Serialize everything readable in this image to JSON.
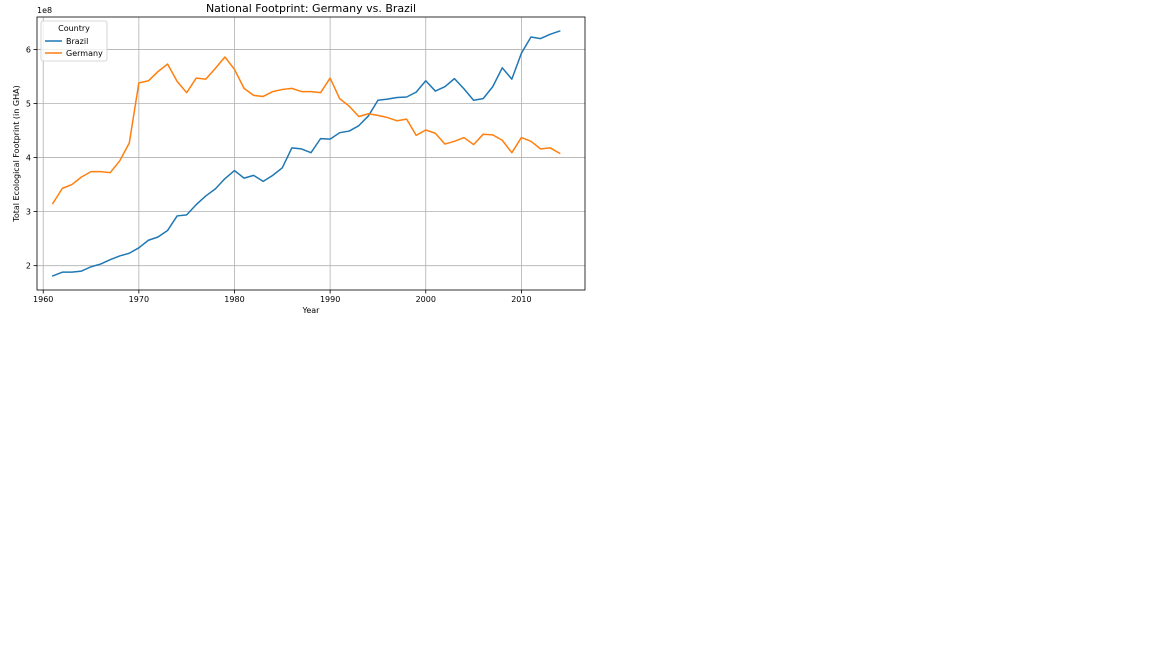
{
  "chart_data": {
    "type": "line",
    "title": "National Footprint: Germany vs. Brazil",
    "xlabel": "Year",
    "ylabel": "Total Ecological Footprint (in GHA)",
    "y_offset_text": "1e8",
    "xlim": [
      1959.35,
      2016.65
    ],
    "ylim": [
      1.55,
      6.6
    ],
    "xticks": [
      1960,
      1970,
      1980,
      1990,
      2000,
      2010
    ],
    "yticks": [
      2,
      3,
      4,
      5,
      6
    ],
    "grid": true,
    "legend": {
      "title": "Country",
      "placement": "top-left"
    },
    "x": [
      1961,
      1962,
      1963,
      1964,
      1965,
      1966,
      1967,
      1968,
      1969,
      1970,
      1971,
      1972,
      1973,
      1974,
      1975,
      1976,
      1977,
      1978,
      1979,
      1980,
      1981,
      1982,
      1983,
      1984,
      1985,
      1986,
      1987,
      1988,
      1989,
      1990,
      1991,
      1992,
      1993,
      1994,
      1995,
      1996,
      1997,
      1998,
      1999,
      2000,
      2001,
      2002,
      2003,
      2004,
      2005,
      2006,
      2007,
      2008,
      2009,
      2010,
      2011,
      2012,
      2013,
      2014
    ],
    "series": [
      {
        "name": "Brazil",
        "color": "#1f77b4",
        "values": [
          1.81,
          1.88,
          1.88,
          1.9,
          1.98,
          2.03,
          2.11,
          2.18,
          2.23,
          2.33,
          2.47,
          2.53,
          2.65,
          2.92,
          2.94,
          3.13,
          3.29,
          3.42,
          3.61,
          3.76,
          3.62,
          3.67,
          3.56,
          3.67,
          3.81,
          4.18,
          4.16,
          4.09,
          4.35,
          4.34,
          4.46,
          4.49,
          4.59,
          4.77,
          5.06,
          5.08,
          5.11,
          5.12,
          5.21,
          5.42,
          5.23,
          5.31,
          5.46,
          5.27,
          5.06,
          5.09,
          5.31,
          5.66,
          5.45,
          5.93,
          6.23,
          6.2,
          6.28,
          6.34
        ]
      },
      {
        "name": "Germany",
        "color": "#ff7f0e",
        "values": [
          3.15,
          3.43,
          3.5,
          3.64,
          3.74,
          3.74,
          3.72,
          3.94,
          4.27,
          5.38,
          5.42,
          5.59,
          5.73,
          5.41,
          5.2,
          5.47,
          5.45,
          5.65,
          5.86,
          5.63,
          5.28,
          5.15,
          5.13,
          5.22,
          5.26,
          5.28,
          5.22,
          5.22,
          5.2,
          5.47,
          5.09,
          4.95,
          4.76,
          4.81,
          4.78,
          4.74,
          4.68,
          4.71,
          4.41,
          4.51,
          4.45,
          4.25,
          4.3,
          4.37,
          4.24,
          4.43,
          4.42,
          4.32,
          4.09,
          4.37,
          4.3,
          4.16,
          4.18,
          4.08
        ]
      }
    ]
  }
}
